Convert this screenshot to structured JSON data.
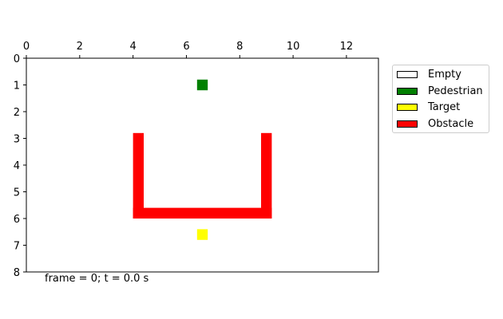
{
  "chart_data": {
    "type": "heatmap",
    "title": "",
    "xlabel": "",
    "ylabel": "",
    "xlim": [
      0,
      13.2
    ],
    "ylim": [
      0,
      8
    ],
    "y_inverted": true,
    "x_axis_position": "top",
    "xticks": [
      "0",
      "2",
      "4",
      "6",
      "8",
      "10",
      "12"
    ],
    "yticks": [
      "0",
      "1",
      "2",
      "3",
      "4",
      "5",
      "6",
      "7",
      "8"
    ],
    "grid": false,
    "legend_position": "right",
    "legend": [
      {
        "label": "Empty",
        "color": "#ffffff"
      },
      {
        "label": "Pedestrian",
        "color": "#008000"
      },
      {
        "label": "Target",
        "color": "#ffff00"
      },
      {
        "label": "Obstacle",
        "color": "#ff0000"
      }
    ],
    "cells": [
      {
        "type": "Pedestrian",
        "x0": 6.4,
        "x1": 6.8,
        "y0": 0.8,
        "y1": 1.2
      },
      {
        "type": "Target",
        "x0": 6.4,
        "x1": 6.8,
        "y0": 6.4,
        "y1": 6.8
      },
      {
        "type": "Obstacle",
        "x0": 4.0,
        "x1": 4.4,
        "y0": 2.8,
        "y1": 6.0
      },
      {
        "type": "Obstacle",
        "x0": 8.8,
        "x1": 9.2,
        "y0": 2.8,
        "y1": 6.0
      },
      {
        "type": "Obstacle",
        "x0": 4.0,
        "x1": 9.2,
        "y0": 5.6,
        "y1": 6.0
      }
    ]
  },
  "status": {
    "frame_text": "frame = 0; t = 0.0 s"
  }
}
